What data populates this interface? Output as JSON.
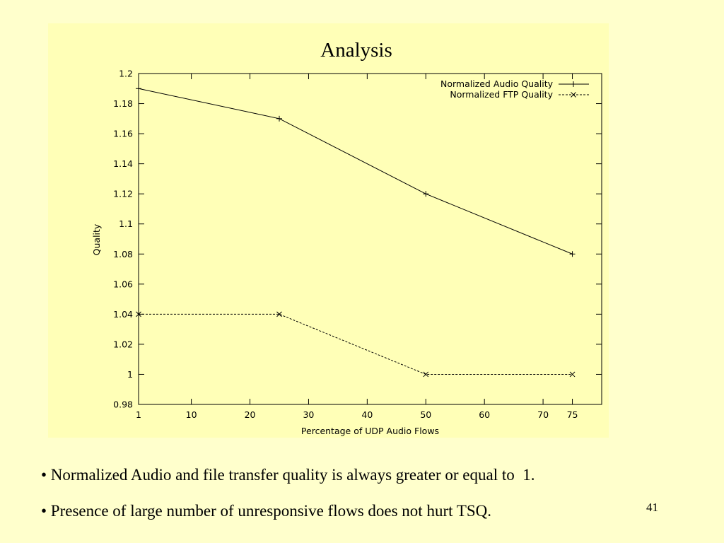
{
  "slide": {
    "bullets": [
      "• Normalized Audio and file transfer quality is always greater or equal to  1.",
      "• Presence of large number of unresponsive flows does not hurt TSQ."
    ],
    "page_number": "41",
    "background_color": "#FFFFCC",
    "panel_color": "#FFFFB7"
  },
  "chart_data": {
    "type": "line",
    "title": "Analysis",
    "xlabel": "Percentage of UDP Audio Flows",
    "ylabel": "Quality",
    "x_ticks": [
      "1",
      "10",
      "20",
      "30",
      "40",
      "50",
      "60",
      "70",
      "75"
    ],
    "y_ticks": [
      "1.2",
      "1.18",
      "1.16",
      "1.14",
      "1.12",
      "1.1",
      "1.08",
      "1.06",
      "1.04",
      "1.02",
      "1",
      "0.98"
    ],
    "xlim": [
      1,
      80
    ],
    "ylim": [
      0.98,
      1.2
    ],
    "grid": false,
    "legend_position": "top-right",
    "series": [
      {
        "name": "Normalized Audio Quality",
        "line_style": "solid",
        "marker": "plus",
        "color": "#000000",
        "x": [
          1,
          25,
          50,
          75
        ],
        "y": [
          1.19,
          1.17,
          1.12,
          1.08
        ]
      },
      {
        "name": "Normalized FTP Quality",
        "line_style": "dashed",
        "marker": "cross",
        "color": "#000000",
        "x": [
          1,
          25,
          50,
          75
        ],
        "y": [
          1.04,
          1.04,
          1.0,
          1.0
        ]
      }
    ]
  }
}
